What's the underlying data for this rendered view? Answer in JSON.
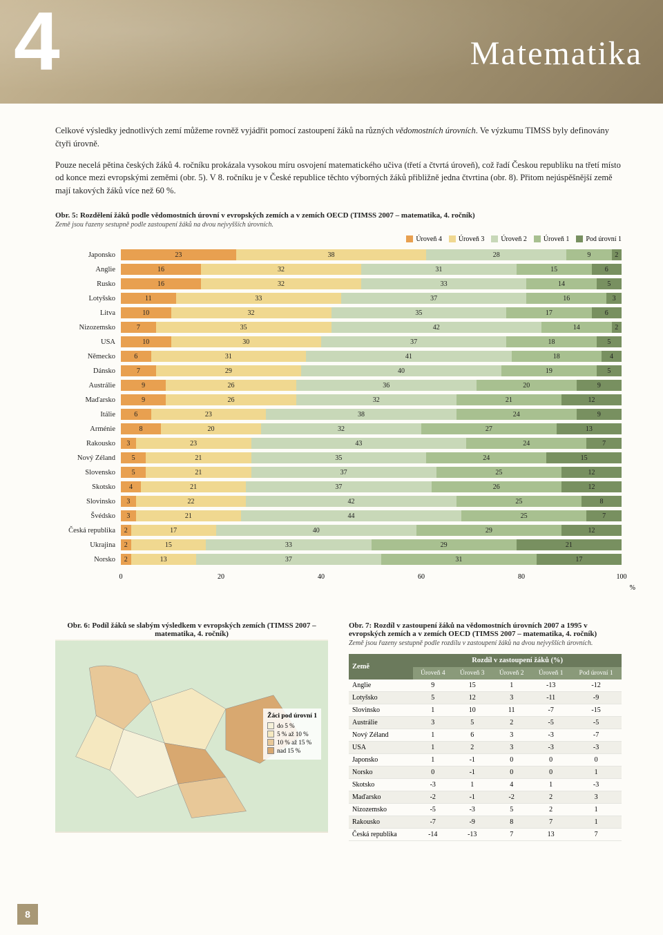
{
  "header": {
    "number": "4",
    "title": "Matematika"
  },
  "para1": "Celkové výsledky jednotlivých zemí můžeme rovněž vyjádřit pomocí zastoupení žáků na různých",
  "para1i": "vědomostních úrovních",
  "para1b": ". Ve výzkumu TIMSS byly definovány čtyři úrovně.",
  "para2": "Pouze necelá pětina českých žáků 4. ročníku prokázala vysokou míru osvojení matematického učiva (třetí a čtvrtá úroveň), což řadí Českou republiku na třetí místo od konce mezi evropskými zeměmi (obr. 5). V 8. ročníku je v České republice těchto výborných žáků přibližně jedna čtvrtina (obr. 8). Přitom nejúspěšnější země mají takových žáků více než 60 %.",
  "chart5": {
    "title": "Obr. 5: Rozdělení žáků podle vědomostních úrovní v evropských zemích a v zemích OECD (TIMSS 2007 – matematika, 4. ročník)",
    "subtitle": "Země jsou řazeny sestupně podle zastoupení žáků na dvou nejvyšších úrovních.",
    "legend": [
      "Úroveň 4",
      "Úroveň 3",
      "Úroveň 2",
      "Úroveň 1",
      "Pod úrovní 1"
    ],
    "colors": [
      "#e8a050",
      "#f0d890",
      "#c8d8b8",
      "#a8c090",
      "#789060"
    ],
    "countries": [
      "Japonsko",
      "Anglie",
      "Rusko",
      "Lotyšsko",
      "Litva",
      "Nizozemsko",
      "USA",
      "Německo",
      "Dánsko",
      "Austrálie",
      "Maďarsko",
      "Itálie",
      "Arménie",
      "Rakousko",
      "Nový Zéland",
      "Slovensko",
      "Skotsko",
      "Slovinsko",
      "Švédsko",
      "Česká republika",
      "Ukrajina",
      "Norsko"
    ],
    "data": [
      [
        23,
        38,
        28,
        9,
        2
      ],
      [
        16,
        32,
        31,
        15,
        6
      ],
      [
        16,
        32,
        33,
        14,
        5
      ],
      [
        11,
        33,
        37,
        16,
        3
      ],
      [
        10,
        32,
        35,
        17,
        6
      ],
      [
        7,
        35,
        42,
        14,
        2
      ],
      [
        10,
        30,
        37,
        18,
        5
      ],
      [
        6,
        31,
        41,
        18,
        4
      ],
      [
        7,
        29,
        40,
        19,
        5
      ],
      [
        9,
        26,
        36,
        20,
        9
      ],
      [
        9,
        26,
        32,
        21,
        12
      ],
      [
        6,
        23,
        38,
        24,
        9
      ],
      [
        8,
        20,
        32,
        27,
        13
      ],
      [
        3,
        23,
        43,
        24,
        7
      ],
      [
        5,
        21,
        35,
        24,
        15
      ],
      [
        5,
        21,
        37,
        25,
        12
      ],
      [
        4,
        21,
        37,
        26,
        12
      ],
      [
        3,
        22,
        42,
        25,
        8
      ],
      [
        3,
        21,
        44,
        25,
        7
      ],
      [
        2,
        17,
        40,
        29,
        12
      ],
      [
        2,
        15,
        33,
        29,
        21
      ],
      [
        2,
        13,
        37,
        31,
        17
      ]
    ],
    "xticks": [
      0,
      20,
      40,
      60,
      80,
      100
    ],
    "xunit": "%"
  },
  "chart6": {
    "title": "Obr. 6: Podíl žáků se slabým výsledkem v evropských zemích (TIMSS 2007 – matematika, 4. ročník)",
    "legend_title": "Žáci pod úrovní 1",
    "legend_items": [
      "do 5 %",
      "5 % až 10 %",
      "10 % až 15 %",
      "nad 15 %"
    ],
    "legend_colors": [
      "#f5f0d8",
      "#f5e8c0",
      "#e8c898",
      "#d8a870"
    ]
  },
  "table7": {
    "title": "Obr. 7: Rozdíl v zastoupení žáků na vědomostních úrovních 2007 a 1995 v evropských zemích a v zemích OECD (TIMSS 2007 – matematika, 4. ročník)",
    "subtitle": "Země jsou řazeny sestupně podle rozdílu v zastoupení žáků na dvou nejvyšších úrovních.",
    "header_main": "Rozdíl v zastoupení žáků (%)",
    "country_header": "Země",
    "sub_headers": [
      "Úroveň 4",
      "Úroveň 3",
      "Úroveň 2",
      "Úroveň 1",
      "Pod úrovní 1"
    ],
    "rows": [
      [
        "Anglie",
        9,
        15,
        1,
        -13,
        -12
      ],
      [
        "Lotyšsko",
        5,
        12,
        3,
        -11,
        -9
      ],
      [
        "Slovinsko",
        1,
        10,
        11,
        -7,
        -15
      ],
      [
        "Austrálie",
        3,
        5,
        2,
        -5,
        -5
      ],
      [
        "Nový Zéland",
        1,
        6,
        3,
        -3,
        -7
      ],
      [
        "USA",
        1,
        2,
        3,
        -3,
        -3
      ],
      [
        "Japonsko",
        1,
        -1,
        0,
        0,
        0
      ],
      [
        "Norsko",
        0,
        -1,
        0,
        0,
        1
      ],
      [
        "Skotsko",
        -3,
        1,
        4,
        1,
        -3
      ],
      [
        "Maďarsko",
        -2,
        -1,
        -2,
        2,
        3
      ],
      [
        "Nizozemsko",
        -5,
        -3,
        5,
        2,
        1
      ],
      [
        "Rakousko",
        -7,
        -9,
        8,
        7,
        1
      ],
      [
        "Česká republika",
        -14,
        -13,
        7,
        13,
        7
      ]
    ]
  },
  "page_number": "8"
}
